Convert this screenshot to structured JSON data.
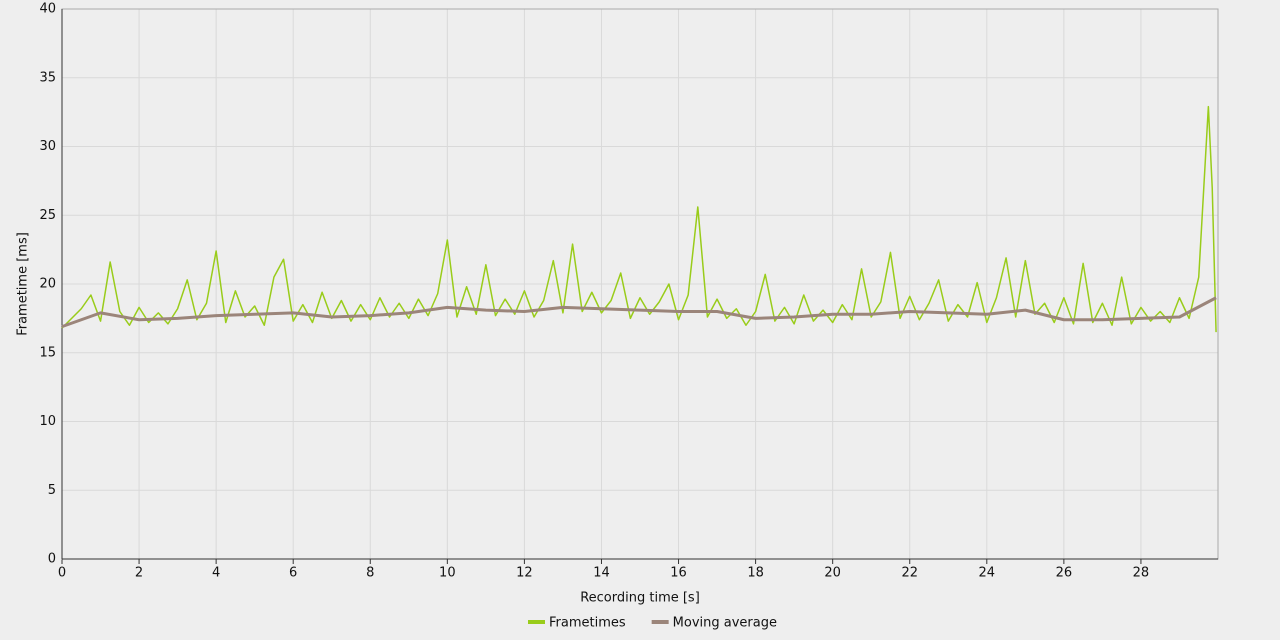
{
  "chart_data": {
    "type": "line",
    "x_label": "Recording time [s]",
    "y_label": "Frametime [ms]",
    "xlim": [
      0,
      30
    ],
    "ylim": [
      0,
      40
    ],
    "xticks": [
      0,
      2,
      4,
      6,
      8,
      10,
      12,
      14,
      16,
      18,
      20,
      22,
      24,
      26,
      28
    ],
    "yticks": [
      0,
      5,
      10,
      15,
      20,
      25,
      30,
      35,
      40
    ],
    "grid": true,
    "legend": "bottom",
    "series": [
      {
        "name": "Frametimes",
        "color": "#99cc1a",
        "x": [
          0,
          0.25,
          0.5,
          0.75,
          1,
          1.25,
          1.5,
          1.75,
          2,
          2.25,
          2.5,
          2.75,
          3,
          3.25,
          3.5,
          3.75,
          4,
          4.25,
          4.5,
          4.75,
          5,
          5.25,
          5.5,
          5.75,
          6,
          6.25,
          6.5,
          6.75,
          7,
          7.25,
          7.5,
          7.75,
          8,
          8.25,
          8.5,
          8.75,
          9,
          9.25,
          9.5,
          9.75,
          10,
          10.25,
          10.5,
          10.75,
          11,
          11.25,
          11.5,
          11.75,
          12,
          12.25,
          12.5,
          12.75,
          13,
          13.25,
          13.5,
          13.75,
          14,
          14.25,
          14.5,
          14.75,
          15,
          15.25,
          15.5,
          15.75,
          16,
          16.25,
          16.5,
          16.75,
          17,
          17.25,
          17.5,
          17.75,
          18,
          18.25,
          18.5,
          18.75,
          19,
          19.25,
          19.5,
          19.75,
          20,
          20.25,
          20.5,
          20.75,
          21,
          21.25,
          21.5,
          21.75,
          22,
          22.25,
          22.5,
          22.75,
          23,
          23.25,
          23.5,
          23.75,
          24,
          24.25,
          24.5,
          24.75,
          25,
          25.25,
          25.5,
          25.75,
          26,
          26.25,
          26.5,
          26.75,
          27,
          27.25,
          27.5,
          27.75,
          28,
          28.25,
          28.5,
          28.75,
          29,
          29.25,
          29.5,
          29.75,
          29.85,
          29.95
        ],
        "values": [
          16.8,
          17.5,
          18.2,
          19.2,
          17.3,
          21.6,
          18.0,
          17.0,
          18.3,
          17.2,
          17.9,
          17.1,
          18.2,
          20.3,
          17.4,
          18.6,
          22.4,
          17.2,
          19.5,
          17.6,
          18.4,
          17.0,
          20.5,
          21.8,
          17.3,
          18.5,
          17.2,
          19.4,
          17.5,
          18.8,
          17.3,
          18.5,
          17.4,
          19.0,
          17.6,
          18.6,
          17.5,
          18.9,
          17.7,
          19.3,
          23.2,
          17.6,
          19.8,
          17.8,
          21.4,
          17.7,
          18.9,
          17.8,
          19.5,
          17.6,
          18.8,
          21.7,
          17.9,
          22.9,
          18.0,
          19.4,
          17.9,
          18.8,
          20.8,
          17.5,
          19.0,
          17.8,
          18.7,
          20.0,
          17.4,
          19.2,
          25.6,
          17.6,
          18.9,
          17.5,
          18.2,
          17.0,
          18.0,
          20.7,
          17.3,
          18.3,
          17.1,
          19.2,
          17.3,
          18.1,
          17.2,
          18.5,
          17.4,
          21.1,
          17.6,
          18.7,
          22.3,
          17.5,
          19.1,
          17.4,
          18.6,
          20.3,
          17.3,
          18.5,
          17.6,
          20.1,
          17.2,
          19.0,
          21.9,
          17.6,
          21.7,
          17.8,
          18.6,
          17.2,
          19.0,
          17.1,
          21.5,
          17.2,
          18.6,
          17.0,
          20.5,
          17.1,
          18.3,
          17.3,
          18.0,
          17.2,
          19.0,
          17.5,
          20.5,
          32.9,
          27.0,
          16.5
        ]
      },
      {
        "name": "Moving average",
        "color": "#9b857a",
        "x": [
          0,
          1,
          2,
          3,
          4,
          5,
          6,
          7,
          8,
          9,
          10,
          11,
          12,
          13,
          14,
          15,
          16,
          17,
          18,
          19,
          20,
          21,
          22,
          23,
          24,
          25,
          26,
          27,
          28,
          29,
          29.95
        ],
        "values": [
          16.9,
          17.9,
          17.4,
          17.5,
          17.7,
          17.8,
          17.9,
          17.6,
          17.7,
          17.9,
          18.3,
          18.1,
          18.0,
          18.3,
          18.2,
          18.1,
          18.0,
          18.0,
          17.5,
          17.6,
          17.8,
          17.8,
          18.0,
          17.9,
          17.8,
          18.1,
          17.4,
          17.4,
          17.5,
          17.6,
          19.0
        ]
      }
    ]
  }
}
